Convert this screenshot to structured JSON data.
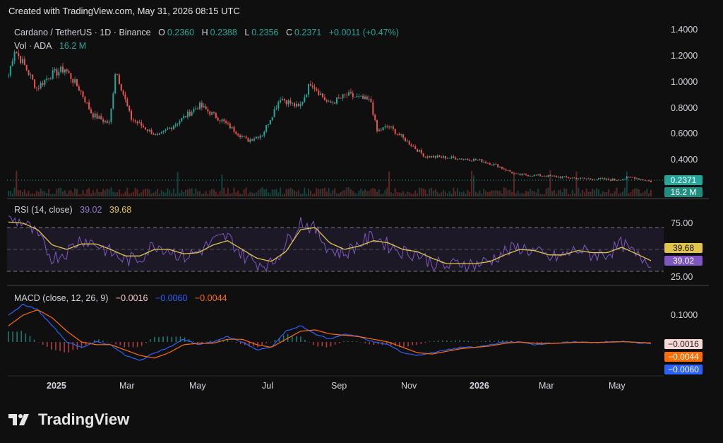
{
  "header": {
    "created_text": "Created with TradingView.com, May 31, 2026 08:15 UTC"
  },
  "brand": {
    "name": "TradingView"
  },
  "colors": {
    "up": "#26a69a",
    "down": "#ef5350",
    "rsi_line": "#7e57c2",
    "rsi_ma": "#e0c54a",
    "macd_line": "#2962ff",
    "signal_line": "#ff6d00",
    "background": "#0f0f0f"
  },
  "main_legend": {
    "symbol": "Cardano / TetherUS · 1D · Binance",
    "o_label": "O",
    "o_value": "0.2360",
    "h_label": "H",
    "h_value": "0.2388",
    "l_label": "L",
    "l_value": "0.2356",
    "c_label": "C",
    "c_value": "0.2371",
    "change": "+0.0011 (+0.47%)",
    "vol_label": "Vol · ADA",
    "vol_value": "16.2 M"
  },
  "rsi_legend": {
    "label": "RSI (14, close)",
    "rsi_value": "39.02",
    "ma_value": "39.68"
  },
  "macd_legend": {
    "label": "MACD (close, 12, 26, 9)",
    "hist_value": "−0.0016",
    "macd_value": "−0.0060",
    "signal_value": "−0.0044"
  },
  "badges": {
    "price": "0.2371",
    "volume": "16.2 M",
    "rsi_ma": "39.68",
    "rsi": "39.02",
    "macd_hist": "−0.0016",
    "macd_signal": "−0.0044",
    "macd_line": "−0.0060"
  },
  "chart_data": [
    {
      "type": "candlestick",
      "title": "Cardano / TetherUS · 1D · Binance",
      "x_tick_labels": [
        "2025",
        "Mar",
        "May",
        "Jul",
        "Sep",
        "Nov",
        "2026",
        "Mar",
        "May"
      ],
      "y_tick_labels": [
        "1.4000",
        "1.2000",
        "1.0000",
        "0.8000",
        "0.6000",
        "0.4000"
      ],
      "ylim": [
        0.2,
        1.4
      ],
      "approx_close_path": [
        {
          "x": "2024-12-01",
          "y": 1.05
        },
        {
          "x": "2024-12-06",
          "y": 1.25
        },
        {
          "x": "2024-12-15",
          "y": 1.12
        },
        {
          "x": "2024-12-25",
          "y": 0.95
        },
        {
          "x": "2025-01-05",
          "y": 1.05
        },
        {
          "x": "2025-01-18",
          "y": 1.1
        },
        {
          "x": "2025-02-01",
          "y": 0.92
        },
        {
          "x": "2025-02-10",
          "y": 0.75
        },
        {
          "x": "2025-02-25",
          "y": 0.68
        },
        {
          "x": "2025-03-02",
          "y": 1.1
        },
        {
          "x": "2025-03-15",
          "y": 0.72
        },
        {
          "x": "2025-04-07",
          "y": 0.58
        },
        {
          "x": "2025-04-25",
          "y": 0.7
        },
        {
          "x": "2025-05-12",
          "y": 0.82
        },
        {
          "x": "2025-06-01",
          "y": 0.7
        },
        {
          "x": "2025-06-22",
          "y": 0.55
        },
        {
          "x": "2025-07-05",
          "y": 0.6
        },
        {
          "x": "2025-07-20",
          "y": 0.88
        },
        {
          "x": "2025-08-05",
          "y": 0.8
        },
        {
          "x": "2025-08-15",
          "y": 1.0
        },
        {
          "x": "2025-08-30",
          "y": 0.83
        },
        {
          "x": "2025-09-15",
          "y": 0.9
        },
        {
          "x": "2025-10-05",
          "y": 0.85
        },
        {
          "x": "2025-10-10",
          "y": 0.62
        },
        {
          "x": "2025-10-20",
          "y": 0.66
        },
        {
          "x": "2025-11-04",
          "y": 0.55
        },
        {
          "x": "2025-11-20",
          "y": 0.43
        },
        {
          "x": "2025-12-10",
          "y": 0.42
        },
        {
          "x": "2026-01-05",
          "y": 0.4
        },
        {
          "x": "2026-01-20",
          "y": 0.36
        },
        {
          "x": "2026-02-05",
          "y": 0.29
        },
        {
          "x": "2026-03-01",
          "y": 0.28
        },
        {
          "x": "2026-04-01",
          "y": 0.26
        },
        {
          "x": "2026-05-01",
          "y": 0.25
        },
        {
          "x": "2026-05-15",
          "y": 0.27
        },
        {
          "x": "2026-05-31",
          "y": 0.2371
        }
      ],
      "last_close": 0.2371
    },
    {
      "type": "line",
      "title": "RSI (14, close)",
      "y_tick_labels": [
        "75.00",
        "25.00"
      ],
      "ylim": [
        20,
        85
      ],
      "bands": [
        70,
        50,
        30
      ],
      "series": [
        {
          "name": "RSI",
          "values": [
            77,
            75,
            62,
            42,
            48,
            60,
            55,
            47,
            40,
            42,
            55,
            50,
            43,
            48,
            57,
            62,
            45,
            38,
            36,
            55,
            76,
            68,
            50,
            46,
            55,
            62,
            54,
            48,
            46,
            38,
            34,
            38,
            36,
            40,
            48,
            52,
            48,
            42,
            44,
            50,
            45,
            46,
            55,
            44,
            39.02
          ]
        },
        {
          "name": "RSI-based MA",
          "values": [
            75,
            74,
            68,
            54,
            50,
            55,
            55,
            50,
            44,
            44,
            50,
            50,
            46,
            47,
            54,
            58,
            50,
            42,
            39,
            48,
            68,
            70,
            56,
            50,
            53,
            58,
            56,
            50,
            48,
            42,
            37,
            37,
            37,
            39,
            45,
            50,
            49,
            45,
            45,
            49,
            47,
            47,
            52,
            46,
            39.68
          ]
        }
      ],
      "last_values": {
        "rsi": 39.02,
        "ma": 39.68
      }
    },
    {
      "type": "line",
      "title": "MACD (close, 12, 26, 9)",
      "y_tick_labels": [
        "0.1000"
      ],
      "ylim": [
        -0.1,
        0.15
      ],
      "series": [
        {
          "name": "MACD",
          "values": [
            0.1,
            0.14,
            0.12,
            0.06,
            0.0,
            -0.02,
            0.0,
            -0.01,
            -0.05,
            -0.07,
            -0.04,
            -0.02,
            0.01,
            -0.01,
            0.0,
            0.02,
            0.0,
            -0.03,
            -0.02,
            0.04,
            0.06,
            0.03,
            0.01,
            0.03,
            0.02,
            0.0,
            -0.01,
            -0.04,
            -0.05,
            -0.04,
            -0.03,
            -0.02,
            -0.02,
            -0.01,
            0.0,
            0.0,
            -0.01,
            -0.005,
            -0.003,
            0.0,
            -0.002,
            0.0,
            0.002,
            -0.003,
            -0.006
          ]
        },
        {
          "name": "Signal",
          "values": [
            0.06,
            0.1,
            0.12,
            0.09,
            0.04,
            0.0,
            -0.01,
            -0.01,
            -0.03,
            -0.05,
            -0.06,
            -0.04,
            -0.01,
            -0.005,
            -0.005,
            0.01,
            0.01,
            -0.01,
            -0.02,
            0.01,
            0.04,
            0.045,
            0.03,
            0.025,
            0.02,
            0.01,
            0.0,
            -0.02,
            -0.04,
            -0.045,
            -0.035,
            -0.025,
            -0.02,
            -0.015,
            -0.005,
            0.0,
            -0.005,
            -0.006,
            -0.004,
            -0.001,
            -0.002,
            -0.001,
            0.001,
            -0.001,
            -0.004
          ]
        }
      ],
      "last_values": {
        "macd": -0.006,
        "signal": -0.0044,
        "histogram": -0.0016
      }
    }
  ]
}
